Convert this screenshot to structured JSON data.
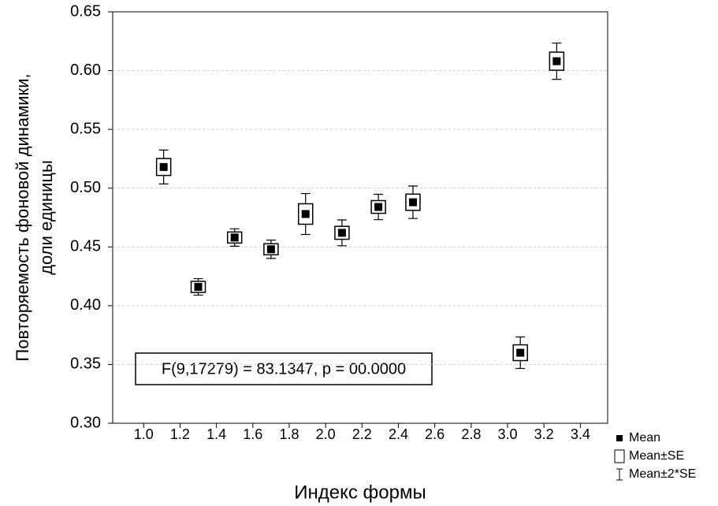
{
  "chart_data": {
    "type": "mean_se",
    "x_label": "Индекс формы",
    "y_label": [
      "Повторяемость фоновой динамики,",
      "доли единицы"
    ],
    "annotation": "F(9,17279) = 83.1347, p = 00.0000",
    "x": [
      1.11,
      1.3,
      1.5,
      1.7,
      1.89,
      2.09,
      2.29,
      2.48,
      3.07,
      3.27
    ],
    "series": [
      {
        "name": "Mean",
        "color": "#000000",
        "values": [
          0.518,
          0.416,
          0.458,
          0.448,
          0.478,
          0.462,
          0.484,
          0.488,
          0.36,
          0.608
        ],
        "se": [
          0.0072,
          0.0035,
          0.0037,
          0.0039,
          0.0087,
          0.0055,
          0.0054,
          0.0069,
          0.0067,
          0.0077
        ]
      }
    ],
    "legend_labels": [
      "Mean",
      "Mean±SE",
      "Mean±2*SE"
    ],
    "xlim": [
      0.83,
      3.55
    ],
    "ylim": [
      0.3,
      0.65
    ],
    "xticks": [
      {
        "value": 1.0,
        "label": "1.0"
      },
      1.2,
      1.4,
      1.6,
      1.8,
      {
        "value": 2.0,
        "label": "2.0"
      },
      2.2,
      2.4,
      2.6,
      2.8,
      {
        "value": 3.0,
        "label": "3.0"
      },
      3.2,
      3.4
    ],
    "yticks": [
      {
        "value": 0.3,
        "label": "0.30"
      },
      0.35,
      {
        "value": 0.4,
        "label": "0.40"
      },
      0.45,
      {
        "value": 0.5,
        "label": "0.50"
      },
      0.55,
      {
        "value": 0.6,
        "label": "0.60"
      },
      0.65
    ],
    "grid": true,
    "legend": "lower-right"
  }
}
